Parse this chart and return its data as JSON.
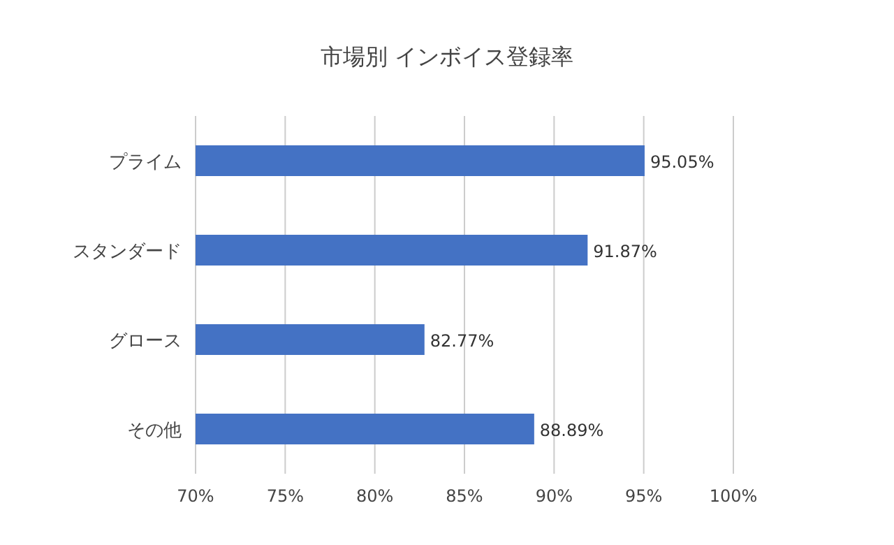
{
  "chart_data": {
    "type": "bar",
    "orientation": "horizontal",
    "title": "市場別 インボイス登録率",
    "categories": [
      "プライム",
      "スタンダード",
      "グロース",
      "その他"
    ],
    "values": [
      95.05,
      91.87,
      82.77,
      88.89
    ],
    "value_labels": [
      "95.05%",
      "91.87%",
      "82.77%",
      "88.89%"
    ],
    "color": "#4472c4",
    "xlim": [
      70,
      100
    ],
    "xticks": [
      {
        "value": 70,
        "label": "70%"
      },
      {
        "value": 75,
        "label": "75%"
      },
      {
        "value": 80,
        "label": "80%"
      },
      {
        "value": 85,
        "label": "85%"
      },
      {
        "value": 90,
        "label": "90%"
      },
      {
        "value": 95,
        "label": "95%"
      },
      {
        "value": 100,
        "label": "100%"
      }
    ],
    "grid": "x"
  }
}
